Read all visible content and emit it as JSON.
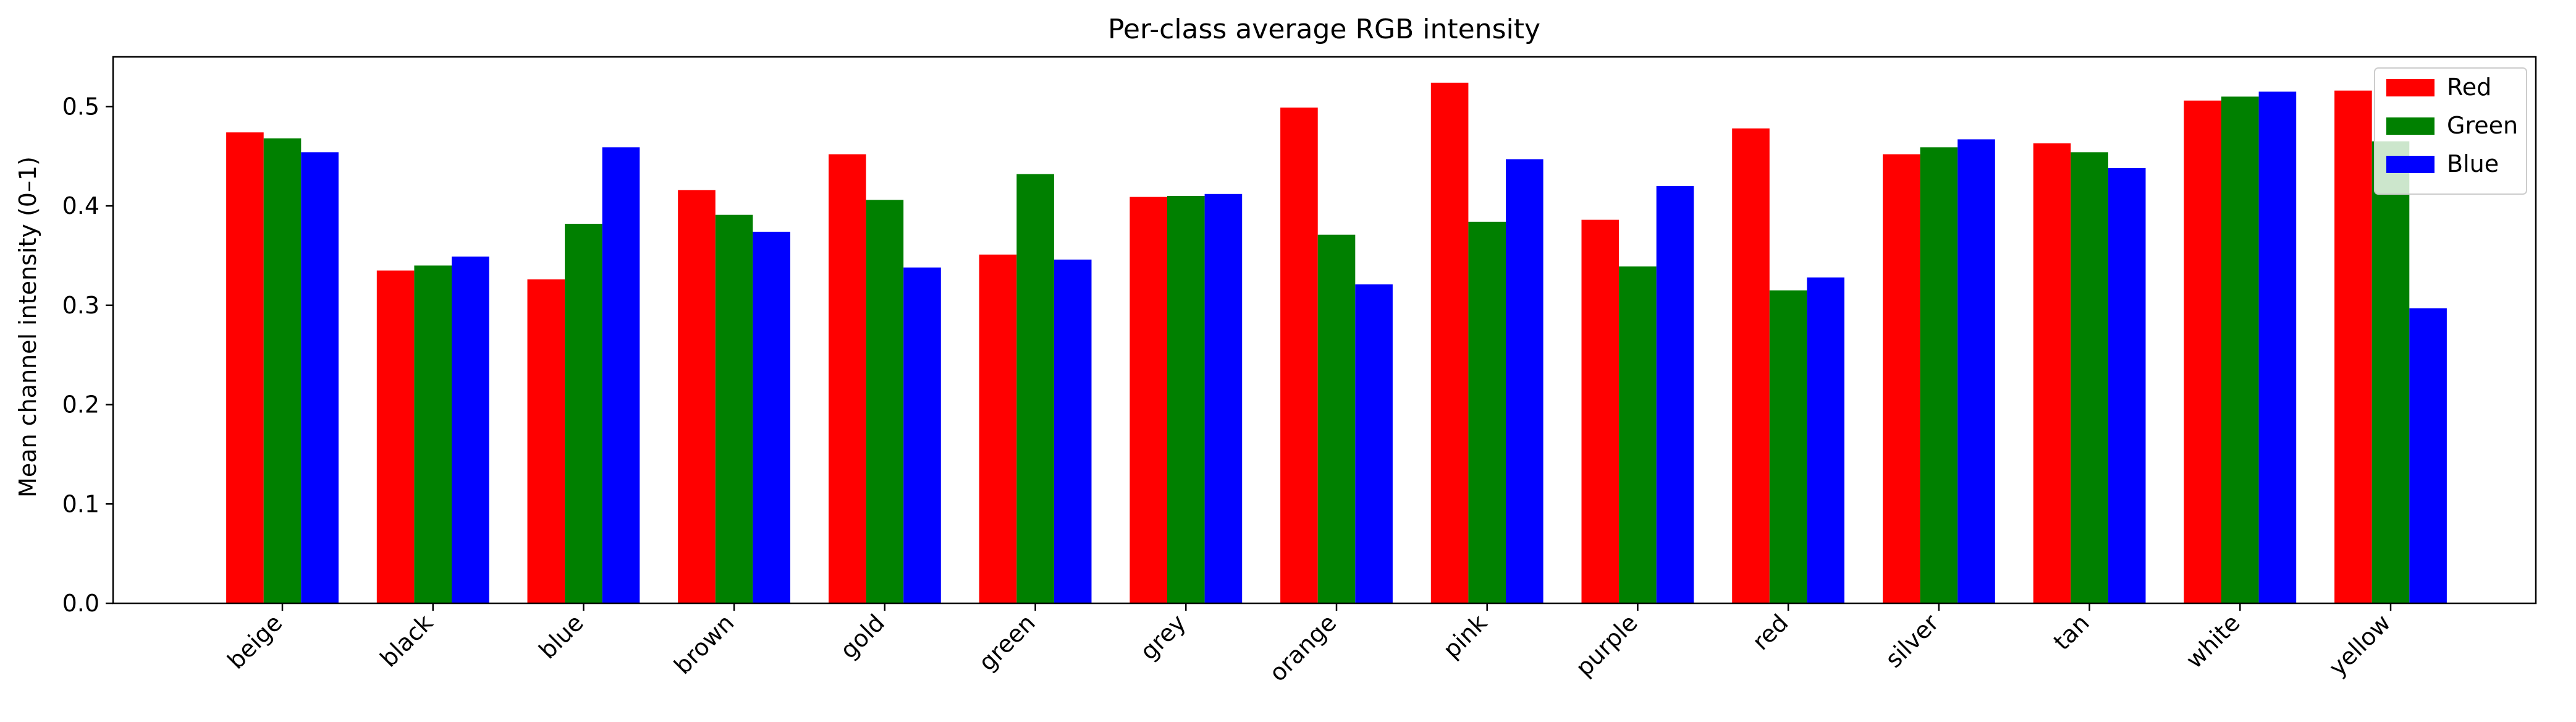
{
  "chart_data": {
    "type": "bar",
    "title": "Per-class average RGB intensity",
    "xlabel": "",
    "ylabel": "Mean channel intensity (0–1)",
    "ylim": [
      0,
      0.55
    ],
    "yticks": [
      0.0,
      0.1,
      0.2,
      0.3,
      0.4,
      0.5
    ],
    "ytick_labels": [
      "0.0",
      "0.1",
      "0.2",
      "0.3",
      "0.4",
      "0.5"
    ],
    "categories": [
      "beige",
      "black",
      "blue",
      "brown",
      "gold",
      "green",
      "grey",
      "orange",
      "pink",
      "purple",
      "red",
      "silver",
      "tan",
      "white",
      "yellow"
    ],
    "series": [
      {
        "name": "Red",
        "color": "#ff0000",
        "values": [
          0.474,
          0.335,
          0.326,
          0.416,
          0.452,
          0.351,
          0.409,
          0.499,
          0.524,
          0.386,
          0.478,
          0.452,
          0.463,
          0.506,
          0.516
        ]
      },
      {
        "name": "Green",
        "color": "#008000",
        "values": [
          0.468,
          0.34,
          0.382,
          0.391,
          0.406,
          0.432,
          0.41,
          0.371,
          0.384,
          0.339,
          0.315,
          0.459,
          0.454,
          0.51,
          0.465
        ]
      },
      {
        "name": "Blue",
        "color": "#0000ff",
        "values": [
          0.454,
          0.349,
          0.459,
          0.374,
          0.338,
          0.346,
          0.412,
          0.321,
          0.447,
          0.42,
          0.328,
          0.467,
          0.438,
          0.515,
          0.297
        ]
      }
    ],
    "legend_position": "top-right",
    "grid": false
  }
}
